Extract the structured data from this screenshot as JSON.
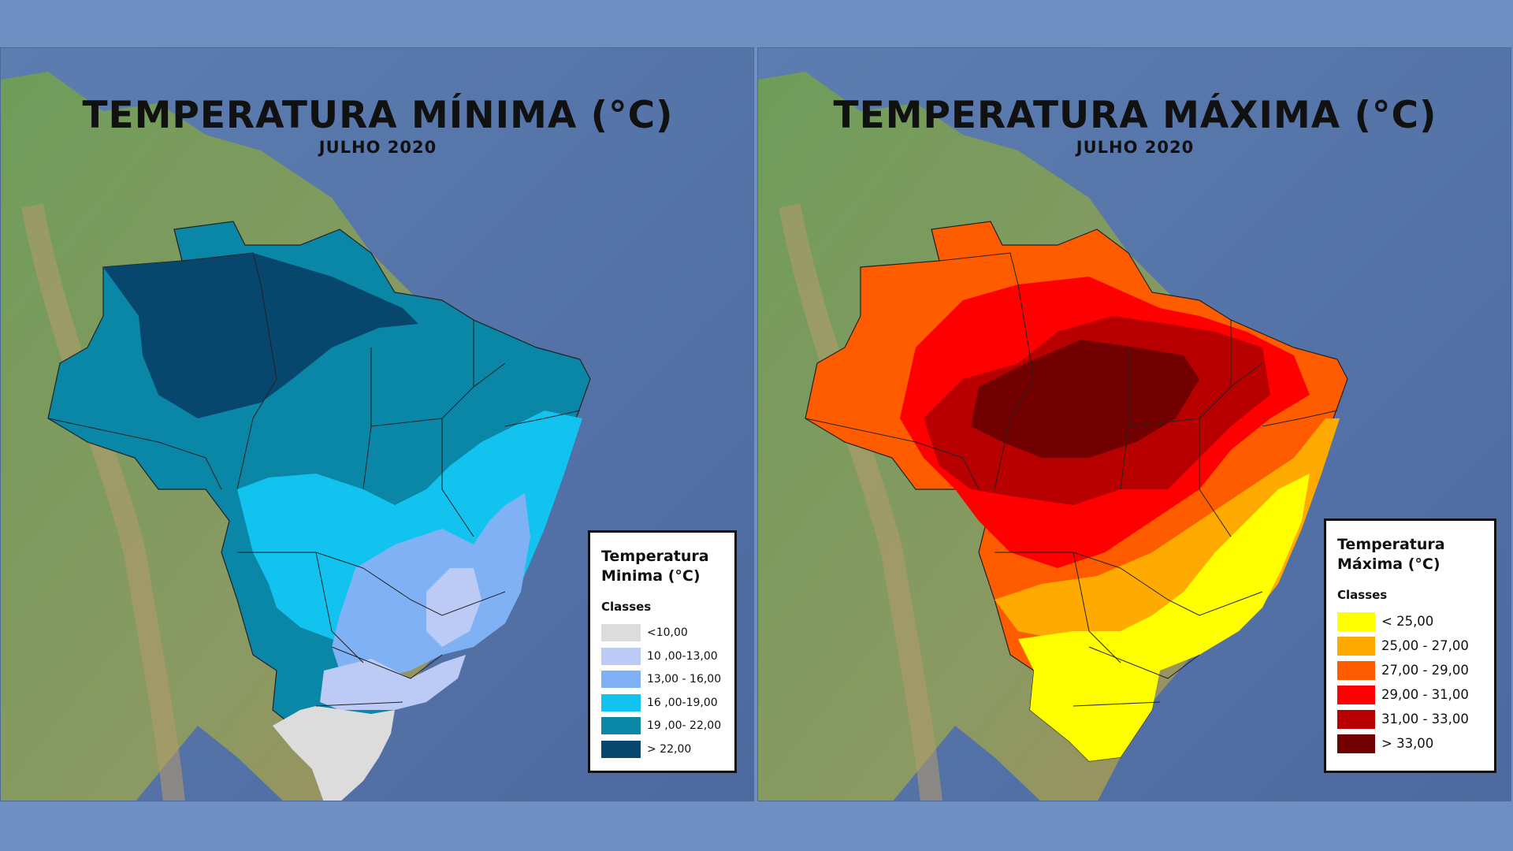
{
  "maps": [
    {
      "id": "min",
      "title": "TEMPERATURA MÍNIMA (°C)",
      "subtitle": "JULHO 2020",
      "legend": {
        "title_line1": "Temperatura",
        "title_line2": "Minima (°C)",
        "classes_label": "Classes",
        "items": [
          {
            "label": "<10,00",
            "color": "#dcdcdc"
          },
          {
            "label": "10 ,00-13,00",
            "color": "#bccbf5"
          },
          {
            "label": "13,00 - 16,00",
            "color": "#7fb1f4"
          },
          {
            "label": "16 ,00-19,00",
            "color": "#12c3ef"
          },
          {
            "label": "19 ,00- 22,00",
            "color": "#0a86a6"
          },
          {
            "label": "> 22,00",
            "color": "#07466d"
          }
        ]
      }
    },
    {
      "id": "max",
      "title": "TEMPERATURA MÁXIMA (°C)",
      "subtitle": "JULHO 2020",
      "legend": {
        "title_line1": "Temperatura",
        "title_line2": "Máxima (°C)",
        "classes_label": "Classes",
        "items": [
          {
            "label": "< 25,00",
            "color": "#ffff00"
          },
          {
            "label": "25,00 - 27,00",
            "color": "#ffaa00"
          },
          {
            "label": "27,00 - 29,00",
            "color": "#ff5c00"
          },
          {
            "label": "29,00 - 31,00",
            "color": "#ff0000"
          },
          {
            "label": "31,00 - 33,00",
            "color": "#b80000"
          },
          {
            "label": "> 33,00",
            "color": "#730000"
          }
        ]
      }
    }
  ],
  "colors": {
    "background": "#6f8fc2",
    "ocean": "#5574a8",
    "land": "#6e9a5a",
    "state_border": "#222222"
  }
}
